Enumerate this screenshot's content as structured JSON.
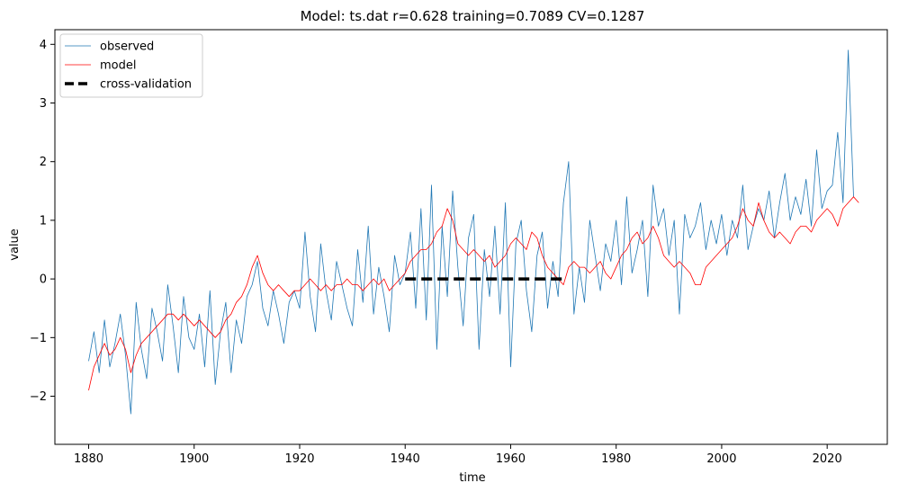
{
  "chart_data": {
    "type": "line",
    "title": "Model: ts.dat  r=0.628  training=0.7089  CV=0.1287",
    "xlabel": "time",
    "ylabel": "value",
    "xlim": [
      1873.6,
      2031.4
    ],
    "ylim": [
      -2.82,
      4.25
    ],
    "xticks": [
      1880,
      1900,
      1920,
      1940,
      1960,
      1980,
      2000,
      2020
    ],
    "yticks": [
      -2,
      -1,
      0,
      1,
      2,
      3,
      4
    ],
    "legend": {
      "placement": "top-left",
      "entries": [
        {
          "label": "observed",
          "color": "#1f77b4",
          "style": "solid-thin"
        },
        {
          "label": "model",
          "color": "#ff0000",
          "style": "solid-thin"
        },
        {
          "label": "cross-validation",
          "color": "#000000",
          "style": "dashed-thick"
        }
      ]
    },
    "series": [
      {
        "name": "observed",
        "color": "#1f77b4",
        "x_start": 1880,
        "x_step": 1,
        "values": [
          -1.4,
          -0.9,
          -1.6,
          -0.7,
          -1.5,
          -1.1,
          -0.6,
          -1.3,
          -2.3,
          -0.4,
          -1.2,
          -1.7,
          -0.5,
          -0.9,
          -1.4,
          -0.1,
          -0.8,
          -1.6,
          -0.3,
          -1.0,
          -1.2,
          -0.6,
          -1.5,
          -0.2,
          -1.8,
          -0.9,
          -0.4,
          -1.6,
          -0.7,
          -1.1,
          -0.3,
          -0.1,
          0.3,
          -0.5,
          -0.8,
          -0.2,
          -0.6,
          -1.1,
          -0.4,
          -0.2,
          -0.5,
          0.8,
          -0.3,
          -0.9,
          0.6,
          -0.2,
          -0.7,
          0.3,
          -0.1,
          -0.5,
          -0.8,
          0.5,
          -0.4,
          0.9,
          -0.6,
          0.2,
          -0.3,
          -0.9,
          0.4,
          -0.1,
          0.1,
          0.8,
          -0.5,
          1.2,
          -0.7,
          1.6,
          -1.2,
          0.9,
          -0.3,
          1.5,
          0.2,
          -0.8,
          0.7,
          1.1,
          -1.2,
          0.5,
          -0.3,
          0.9,
          -0.6,
          1.3,
          -1.5,
          0.6,
          1.0,
          -0.2,
          -0.9,
          0.4,
          0.8,
          -0.5,
          0.3,
          -0.3,
          1.3,
          2.0,
          -0.6,
          0.2,
          -0.4,
          1.0,
          0.4,
          -0.2,
          0.6,
          0.3,
          1.0,
          -0.1,
          1.4,
          0.1,
          0.5,
          1.0,
          -0.3,
          1.6,
          0.9,
          1.2,
          0.4,
          1.0,
          -0.6,
          1.1,
          0.7,
          0.9,
          1.3,
          0.5,
          1.0,
          0.6,
          1.1,
          0.4,
          1.0,
          0.7,
          1.6,
          0.5,
          0.9,
          1.2,
          1.0,
          1.5,
          0.7,
          1.3,
          1.8,
          1.0,
          1.4,
          1.1,
          1.7,
          0.9,
          2.2,
          1.2,
          1.5,
          1.6,
          2.5,
          1.3,
          3.9,
          1.4
        ]
      },
      {
        "name": "model",
        "color": "#ff0000",
        "x_start": 1880,
        "x_step": 1,
        "values": [
          -1.9,
          -1.5,
          -1.3,
          -1.1,
          -1.3,
          -1.2,
          -1.0,
          -1.2,
          -1.6,
          -1.3,
          -1.1,
          -1.0,
          -0.9,
          -0.8,
          -0.7,
          -0.6,
          -0.6,
          -0.7,
          -0.6,
          -0.7,
          -0.8,
          -0.7,
          -0.8,
          -0.9,
          -1.0,
          -0.9,
          -0.7,
          -0.6,
          -0.4,
          -0.3,
          -0.1,
          0.2,
          0.4,
          0.1,
          -0.1,
          -0.2,
          -0.1,
          -0.2,
          -0.3,
          -0.2,
          -0.2,
          -0.1,
          0.0,
          -0.1,
          -0.2,
          -0.1,
          -0.2,
          -0.1,
          -0.1,
          0.0,
          -0.1,
          -0.1,
          -0.2,
          -0.1,
          0.0,
          -0.1,
          0.0,
          -0.2,
          -0.1,
          0.0,
          0.1,
          0.3,
          0.4,
          0.5,
          0.5,
          0.6,
          0.8,
          0.9,
          1.2,
          1.0,
          0.6,
          0.5,
          0.4,
          0.5,
          0.4,
          0.3,
          0.4,
          0.2,
          0.3,
          0.4,
          0.6,
          0.7,
          0.6,
          0.5,
          0.8,
          0.7,
          0.4,
          0.2,
          0.1,
          0.0,
          -0.1,
          0.2,
          0.3,
          0.2,
          0.2,
          0.1,
          0.2,
          0.3,
          0.1,
          0.0,
          0.2,
          0.4,
          0.5,
          0.7,
          0.8,
          0.6,
          0.7,
          0.9,
          0.7,
          0.4,
          0.3,
          0.2,
          0.3,
          0.2,
          0.1,
          -0.1,
          -0.1,
          0.2,
          0.3,
          0.4,
          0.5,
          0.6,
          0.7,
          0.9,
          1.2,
          1.0,
          0.9,
          1.3,
          1.0,
          0.8,
          0.7,
          0.8,
          0.7,
          0.6,
          0.8,
          0.9,
          0.9,
          0.8,
          1.0,
          1.1,
          1.2,
          1.1,
          0.9,
          1.2,
          1.3,
          1.4,
          1.3
        ]
      },
      {
        "name": "cross-validation",
        "color": "#000000",
        "x": [
          1940,
          1970
        ],
        "y": [
          0,
          0
        ]
      }
    ]
  }
}
